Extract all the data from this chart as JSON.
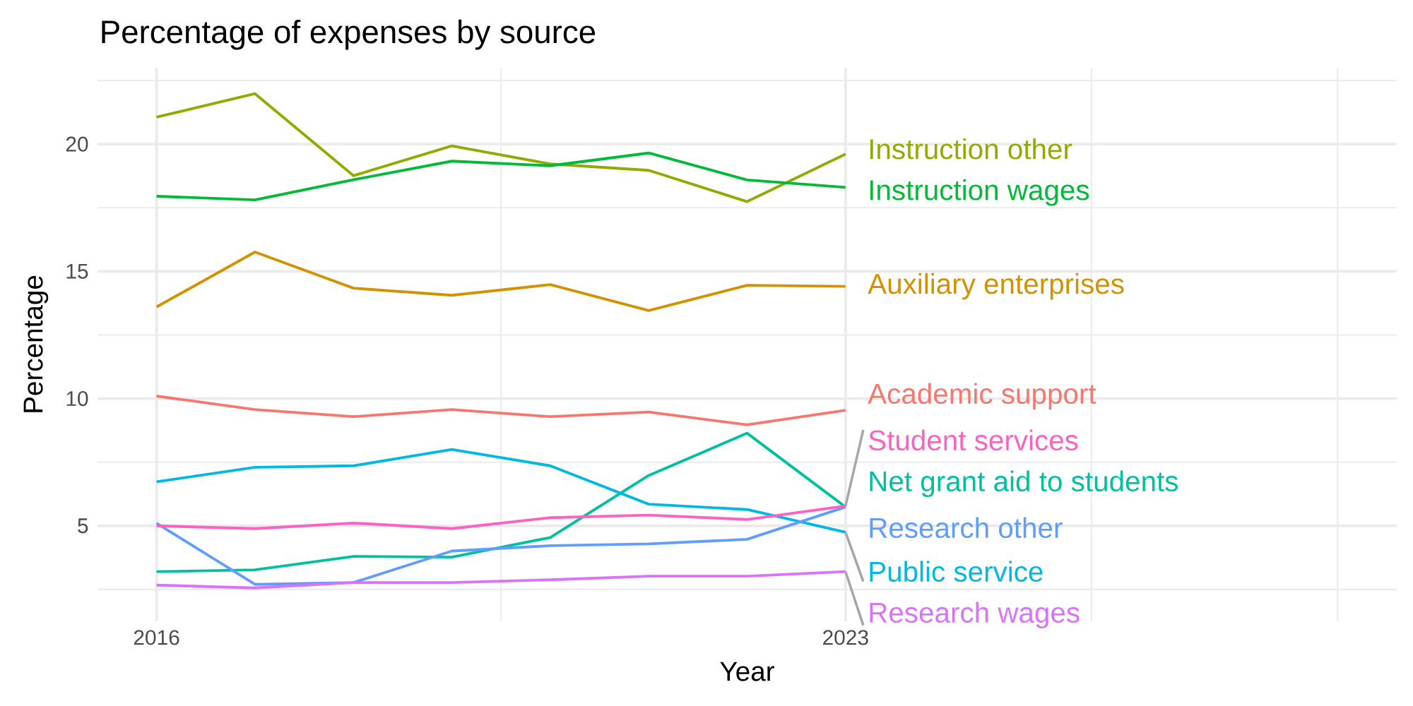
{
  "chart_data": {
    "type": "line",
    "title": "Percentage of expenses by source",
    "xlabel": "Year",
    "ylabel": "Percentage",
    "x": [
      2016,
      2017,
      2018,
      2019,
      2020,
      2021,
      2022,
      2023
    ],
    "xlim": [
      2015.4,
      2028.6
    ],
    "ylim": [
      1.25,
      23.0
    ],
    "xticks": [
      2016,
      2023,
      {
        "value": 2019.5,
        "label": null
      },
      {
        "value": 2025.5,
        "label": null
      },
      {
        "value": 2028,
        "label": null
      }
    ],
    "yticks": [
      5,
      10,
      15,
      20,
      {
        "value": 2.5,
        "label": null
      },
      {
        "value": 7.5,
        "label": null
      },
      {
        "value": 12.5,
        "label": null
      },
      {
        "value": 17.5,
        "label": null
      },
      {
        "value": 22.5,
        "label": null
      }
    ],
    "grid": true,
    "legend": false,
    "series": [
      {
        "name": "Academic support",
        "color": "#f8766d",
        "values": [
          10.1,
          9.57,
          9.29,
          9.57,
          9.29,
          9.47,
          8.97,
          9.54
        ]
      },
      {
        "name": "Auxiliary enterprises",
        "color": "#d39200",
        "values": [
          13.6,
          15.76,
          14.34,
          14.06,
          14.48,
          13.46,
          14.45,
          14.41
        ]
      },
      {
        "name": "Instruction other",
        "color": "#93aa00",
        "values": [
          21.06,
          21.98,
          18.76,
          19.93,
          19.22,
          18.97,
          17.74,
          19.61
        ]
      },
      {
        "name": "Instruction wages",
        "color": "#00ba38",
        "values": [
          17.95,
          17.81,
          18.6,
          19.33,
          19.15,
          19.65,
          18.59,
          18.3
        ]
      },
      {
        "name": "Net grant aid to students",
        "color": "#00c19f",
        "values": [
          3.2,
          3.27,
          3.8,
          3.77,
          4.54,
          6.98,
          8.64,
          5.74
        ]
      },
      {
        "name": "Public service",
        "color": "#00b9e3",
        "values": [
          6.73,
          7.3,
          7.36,
          8.0,
          7.36,
          5.85,
          5.64,
          4.75
        ]
      },
      {
        "name": "Research other",
        "color": "#619cff",
        "values": [
          5.1,
          2.7,
          2.77,
          4.01,
          4.22,
          4.29,
          4.47,
          5.74
        ]
      },
      {
        "name": "Research wages",
        "color": "#db72fb",
        "values": [
          2.67,
          2.56,
          2.77,
          2.77,
          2.88,
          3.02,
          3.02,
          3.2
        ]
      },
      {
        "name": "Student services",
        "color": "#ff61c3",
        "values": [
          5.0,
          4.89,
          5.11,
          4.89,
          5.32,
          5.42,
          5.25,
          5.78
        ]
      }
    ]
  }
}
